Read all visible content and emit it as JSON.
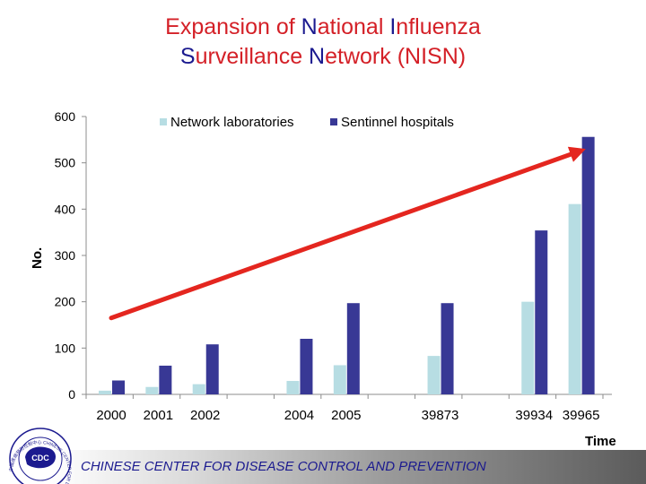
{
  "title": {
    "line1": [
      {
        "text": "Expansion of ",
        "color": "red"
      },
      {
        "text": "N",
        "color": "blue"
      },
      {
        "text": "ational ",
        "color": "red"
      },
      {
        "text": "I",
        "color": "blue"
      },
      {
        "text": "nfluenza",
        "color": "red"
      }
    ],
    "line2": [
      {
        "text": "S",
        "color": "blue"
      },
      {
        "text": "urveillance  ",
        "color": "red"
      },
      {
        "text": "N",
        "color": "blue"
      },
      {
        "text": "etwork (NISN)",
        "color": "red"
      }
    ]
  },
  "chart_data": {
    "type": "bar",
    "title": "Expansion of National Influenza Surveillance Network (NISN)",
    "xlabel": "Time",
    "ylabel": "No.",
    "ylim": [
      0,
      600
    ],
    "yticks": [
      0,
      100,
      200,
      300,
      400,
      500,
      600
    ],
    "grid": false,
    "legend_position": "top",
    "categories": [
      "2000",
      "2001",
      "2002",
      "2004",
      "2005",
      "39873",
      "39934",
      "39965"
    ],
    "category_slots": [
      0,
      1,
      2,
      4,
      5,
      7,
      9,
      10
    ],
    "total_slots": 11,
    "series": [
      {
        "name": "Network laboratories",
        "color": "#b7dde3",
        "values": [
          8,
          16,
          22,
          29,
          63,
          83,
          200,
          411
        ]
      },
      {
        "name": "Sentinnel hospitals",
        "color": "#383895",
        "values": [
          30,
          62,
          108,
          120,
          197,
          197,
          354,
          556
        ]
      }
    ],
    "trend_arrow": {
      "from": {
        "slot": 0,
        "value": 165
      },
      "to": {
        "slot": 10.1,
        "value": 530
      },
      "color": "#e4261f"
    }
  },
  "footer": {
    "org_name": "CHINESE CENTER FOR DISEASE CONTROL AND PREVENTION",
    "logo_text": "CDC",
    "logo_ring_text": "中国疾病预防控制中心 CHINESE CENTER FOR DISEASE CONTROL"
  }
}
